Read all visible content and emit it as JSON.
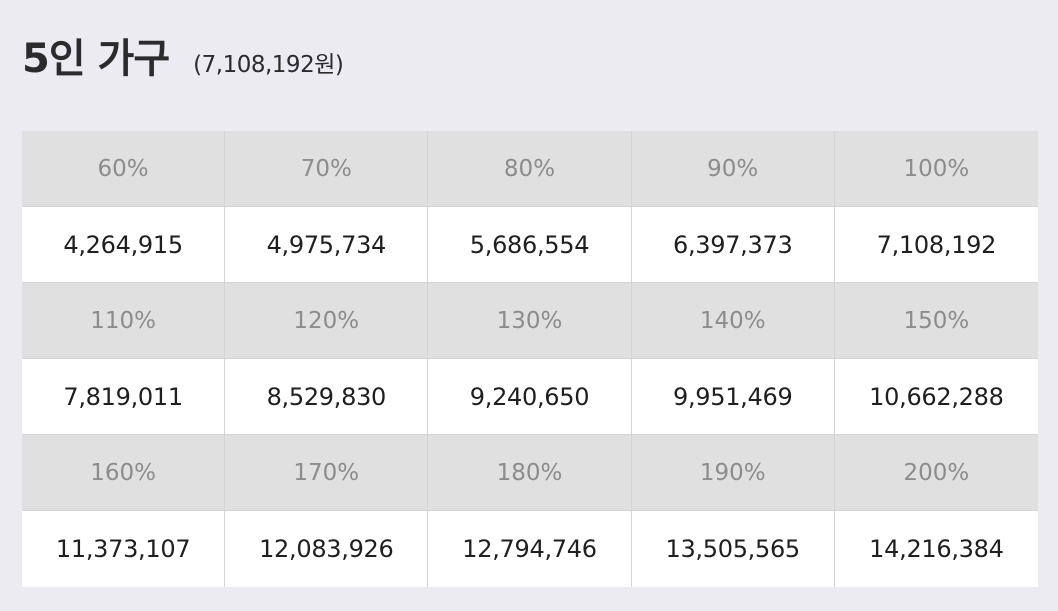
{
  "header": {
    "title": "5인 가구",
    "subtitle": "(7,108,192원)"
  },
  "rows": [
    {
      "percents": [
        "60%",
        "70%",
        "80%",
        "90%",
        "100%"
      ],
      "amounts": [
        "4,264,915",
        "4,975,734",
        "5,686,554",
        "6,397,373",
        "7,108,192"
      ]
    },
    {
      "percents": [
        "110%",
        "120%",
        "130%",
        "140%",
        "150%"
      ],
      "amounts": [
        "7,819,011",
        "8,529,830",
        "9,240,650",
        "9,951,469",
        "10,662,288"
      ]
    },
    {
      "percents": [
        "160%",
        "170%",
        "180%",
        "190%",
        "200%"
      ],
      "amounts": [
        "11,373,107",
        "12,083,926",
        "12,794,746",
        "13,505,565",
        "14,216,384"
      ]
    }
  ]
}
